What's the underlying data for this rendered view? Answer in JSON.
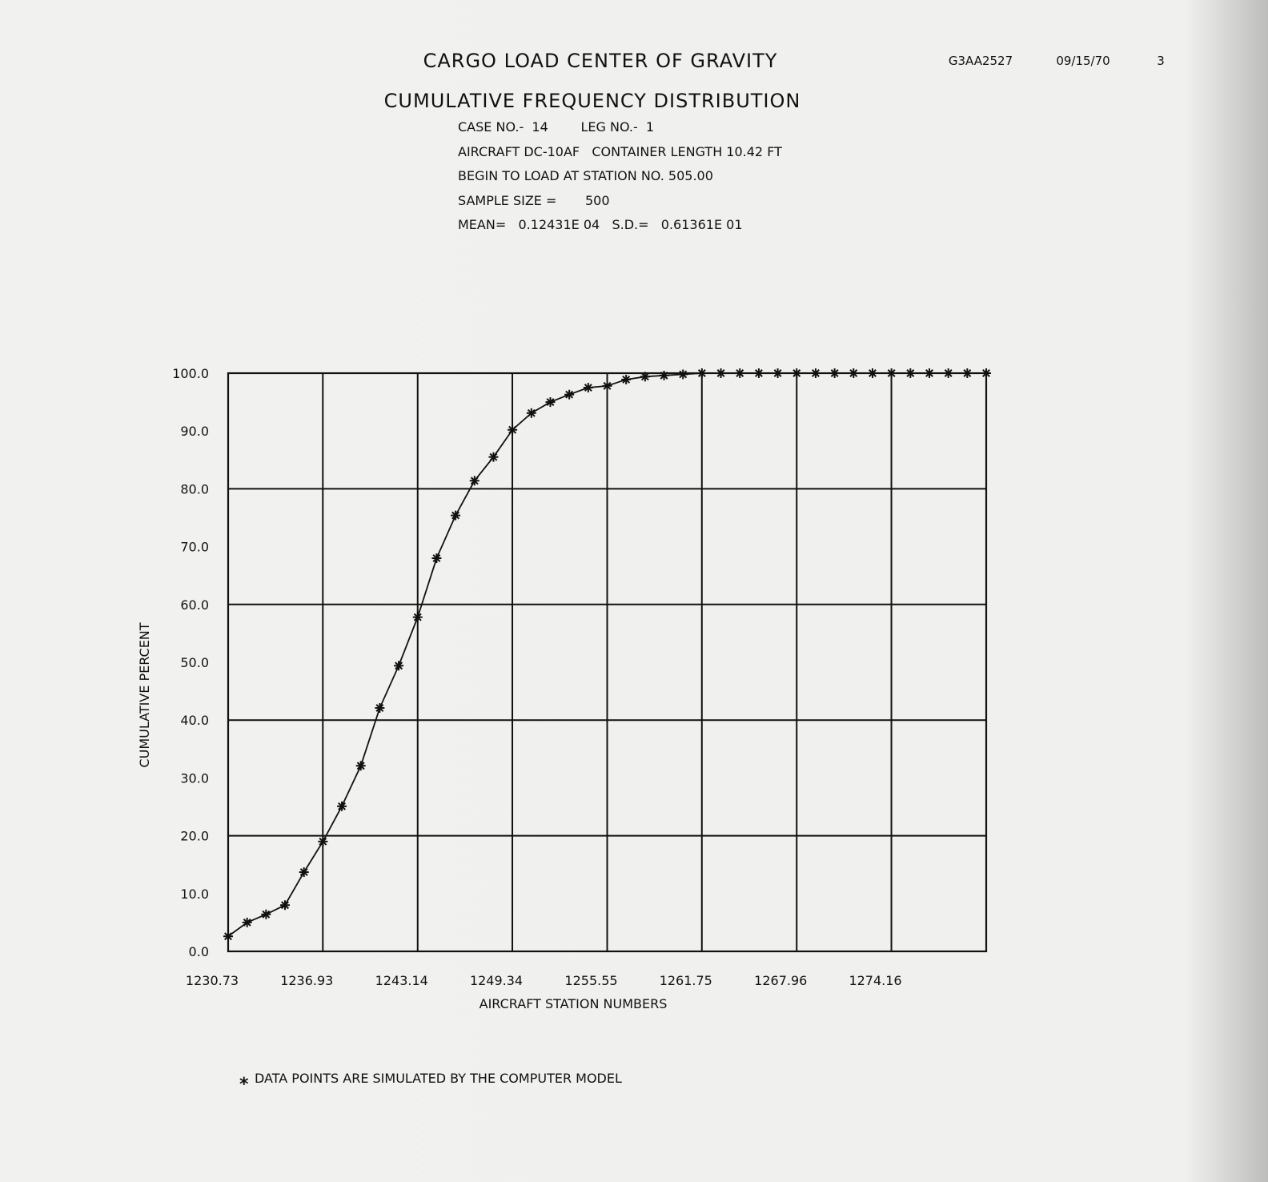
{
  "header": {
    "title": "CARGO LOAD CENTER OF GRAVITY",
    "subtitle": "CUMULATIVE FREQUENCY DISTRIBUTION",
    "job_id": "G3AA2527",
    "date": "09/15/70",
    "page_number": "3",
    "info_lines": [
      "CASE NO.-  14        LEG NO.-  1",
      "AIRCRAFT DC-10AF   CONTAINER LENGTH 10.42 FT",
      "BEGIN TO LOAD AT STATION NO. 505.00",
      "SAMPLE SIZE =       500",
      "MEAN=   0.12431E 04   S.D.=   0.61361E 01"
    ]
  },
  "footnote": {
    "symbol": "*",
    "text": "DATA POINTS ARE SIMULATED BY THE COMPUTER MODEL"
  },
  "chart_data": {
    "type": "line",
    "title": "CUMULATIVE FREQUENCY DISTRIBUTION",
    "xlabel": "AIRCRAFT STATION NUMBERS",
    "ylabel": "CUMULATIVE PERCENT",
    "xlim": [
      1230.73,
      1280.37
    ],
    "ylim": [
      0,
      100
    ],
    "x_ticks": [
      "1230.73",
      "1236.93",
      "1243.14",
      "1249.34",
      "1255.55",
      "1261.75",
      "1267.96",
      "1274.16"
    ],
    "x_tick_values": [
      1230.73,
      1236.93,
      1243.14,
      1249.34,
      1255.55,
      1261.75,
      1267.96,
      1274.16,
      1280.37
    ],
    "y_ticks": [
      "0.0",
      "10.0",
      "20.0",
      "30.0",
      "40.0",
      "50.0",
      "60.0",
      "70.0",
      "80.0",
      "90.0",
      "100.0"
    ],
    "y_grid_values": [
      20,
      40,
      60,
      80,
      100
    ],
    "grid": true,
    "marker": "asterisk",
    "line_color": "#111111",
    "x_start": 1230.73,
    "x_step": 1.241,
    "series": [
      {
        "values": [
          2.6,
          5.0,
          6.4,
          8.0,
          13.7,
          19.0,
          25.1,
          32.1,
          42.1,
          49.4,
          57.8,
          68.0,
          75.4,
          81.4,
          85.5,
          90.2,
          93.1,
          95.0,
          96.3,
          97.5,
          97.8,
          98.9,
          99.4,
          99.6,
          99.8,
          100,
          100,
          100,
          100,
          100,
          100,
          100,
          100,
          100,
          100,
          100,
          100,
          100,
          100,
          100,
          100
        ]
      }
    ]
  }
}
